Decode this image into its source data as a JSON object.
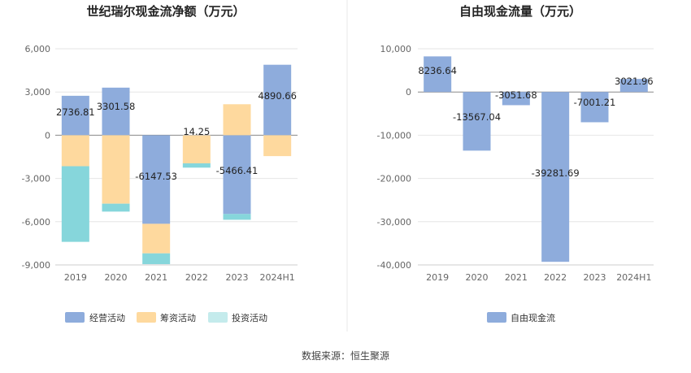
{
  "source_text": "数据来源：恒生聚源",
  "colors": {
    "operating": "#8eacdc",
    "financing": "#fed99e",
    "investing": "#86d6db",
    "investing_legend": "#c4ebec",
    "free_cash": "#8eacdc",
    "axis": "#999999",
    "grid": "#e6e6e6",
    "divider": "#e8e8e8"
  },
  "chart_data": [
    {
      "type": "bar",
      "stacked": true,
      "title": "世纪瑞尔现金流净额（万元）",
      "categories": [
        "2019",
        "2020",
        "2021",
        "2022",
        "2023",
        "2024H1"
      ],
      "ylim": [
        -9000,
        6000
      ],
      "yticks": [
        6000,
        3000,
        0,
        -3000,
        -6000,
        -9000
      ],
      "ytick_labels": [
        "6,000",
        "3,000",
        "0",
        "-3,000",
        "-6,000",
        "-9,000"
      ],
      "legend_position": "bottom",
      "series": [
        {
          "name": "经营活动",
          "key": "operating",
          "values": [
            2736.81,
            3301.58,
            -6147.53,
            14.25,
            -5466.41,
            4890.66
          ]
        },
        {
          "name": "筹资活动",
          "key": "financing",
          "values": [
            -2150,
            -4750,
            -2050,
            -1950,
            2150,
            -1450
          ]
        },
        {
          "name": "投资活动",
          "key": "investing",
          "values": [
            -5250,
            -550,
            -750,
            -300,
            -400,
            0
          ]
        }
      ],
      "data_labels": [
        "2736.81",
        "3301.58",
        "-6147.53",
        "14.25",
        "-5466.41",
        "4890.66"
      ]
    },
    {
      "type": "bar",
      "title": "自由现金流量（万元）",
      "categories": [
        "2019",
        "2020",
        "2021",
        "2022",
        "2023",
        "2024H1"
      ],
      "ylim": [
        -40000,
        10000
      ],
      "yticks": [
        10000,
        0,
        -10000,
        -20000,
        -30000,
        -40000
      ],
      "ytick_labels": [
        "10,000",
        "0",
        "-10,000",
        "-20,000",
        "-30,000",
        "-40,000"
      ],
      "legend_position": "bottom",
      "series": [
        {
          "name": "自由现金流",
          "key": "free_cash",
          "values": [
            8236.64,
            -13567.04,
            -3051.68,
            -39281.69,
            -7001.21,
            3021.96
          ]
        }
      ],
      "data_labels": [
        "8236.64",
        "-13567.04",
        "-3051.68",
        "-39281.69",
        "-7001.21",
        "3021.96"
      ]
    }
  ]
}
